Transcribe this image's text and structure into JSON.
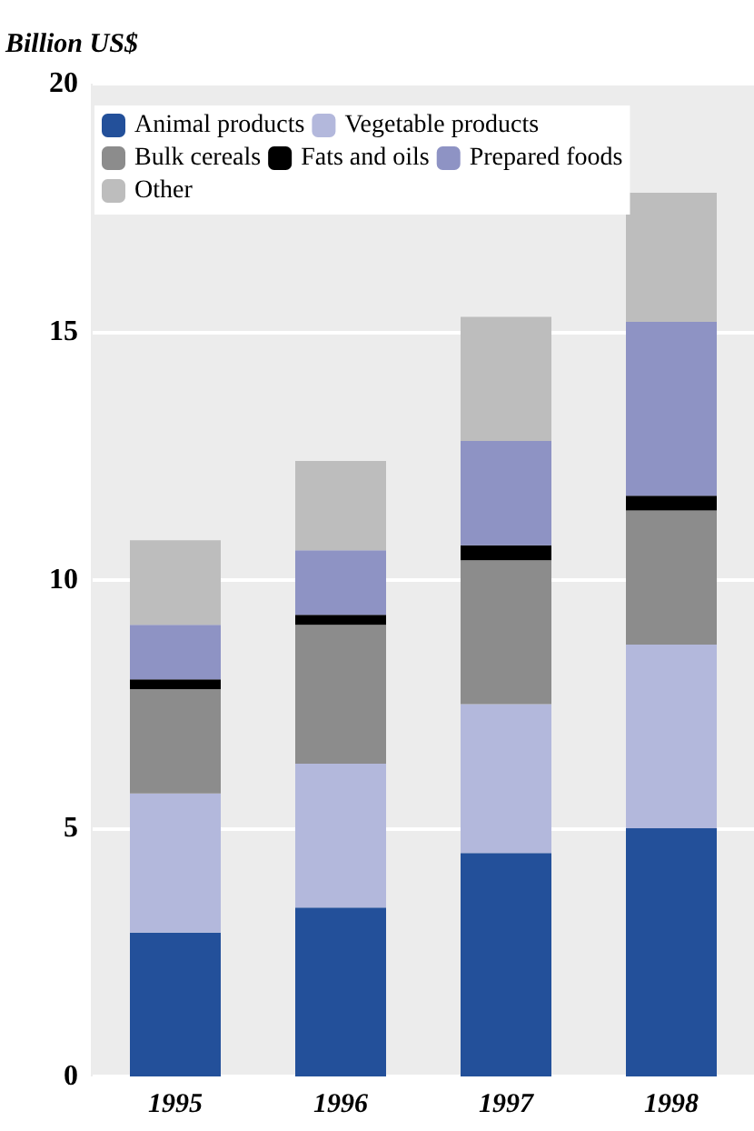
{
  "chart_data": {
    "type": "bar",
    "stacked": true,
    "ylabel": "Billion US$",
    "categories": [
      "1995",
      "1996",
      "1997",
      "1998"
    ],
    "series": [
      {
        "name": "Animal products",
        "color": "#23509a",
        "values": [
          2.9,
          3.4,
          4.5,
          5.0
        ]
      },
      {
        "name": "Vegetable products",
        "color": "#b3b8dc",
        "values": [
          2.8,
          2.9,
          3.0,
          3.7
        ]
      },
      {
        "name": "Bulk cereals",
        "color": "#8c8c8c",
        "values": [
          2.1,
          2.8,
          2.9,
          2.7
        ]
      },
      {
        "name": "Fats and oils",
        "color": "#000000",
        "values": [
          0.2,
          0.2,
          0.3,
          0.3
        ]
      },
      {
        "name": "Prepared foods",
        "color": "#8e93c4",
        "values": [
          1.1,
          1.3,
          2.1,
          3.5
        ]
      },
      {
        "name": "Other",
        "color": "#bdbdbd",
        "values": [
          1.7,
          1.8,
          2.5,
          2.6
        ]
      }
    ],
    "ylim": [
      0,
      20
    ],
    "yticks": [
      0,
      5,
      10,
      15,
      20
    ],
    "grid": "y",
    "legend": "top left"
  }
}
